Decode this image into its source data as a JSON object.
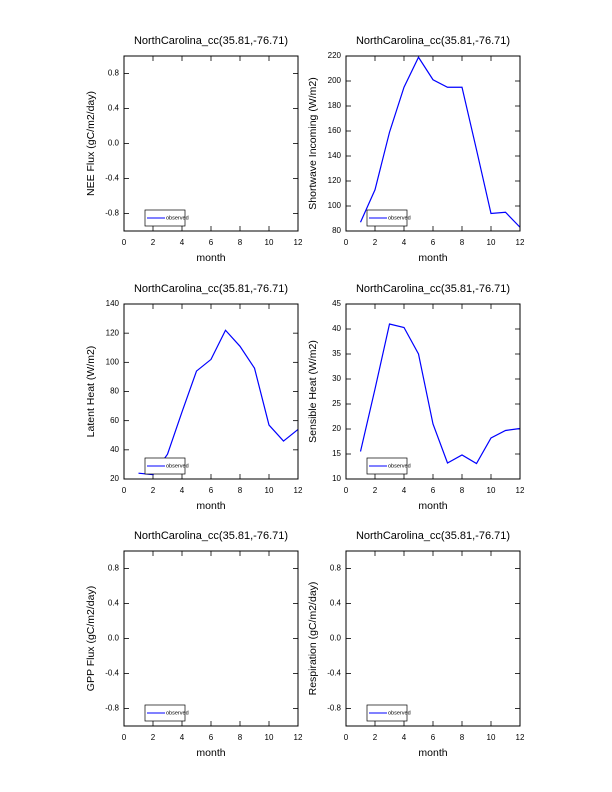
{
  "chart_data": [
    {
      "type": "line",
      "title": "NorthCarolina_cc(35.81,-76.71)",
      "xlabel": "month",
      "ylabel": "NEE Flux (gC/m2/day)",
      "x": [
        1,
        2,
        3,
        4,
        5,
        6,
        7,
        8,
        9,
        10,
        11,
        12
      ],
      "series": [
        {
          "name": "observed",
          "color": "#0000ff",
          "values": [
            null,
            null,
            null,
            null,
            null,
            null,
            null,
            null,
            null,
            null,
            null,
            null
          ]
        }
      ],
      "xlim": [
        0,
        12
      ],
      "xticks": [
        0,
        2,
        4,
        6,
        8,
        10,
        12
      ],
      "ylim": [
        -1,
        1
      ],
      "yticks": [
        -0.8,
        -0.4,
        {
          "value": 0,
          "label": "0.0"
        },
        0.4,
        0.8
      ],
      "grid": false,
      "legend": "lower left"
    },
    {
      "type": "line",
      "title": "NorthCarolina_cc(35.81,-76.71)",
      "xlabel": "month",
      "ylabel": "Shortwave Incoming (W/m2)",
      "x": [
        1,
        2,
        3,
        4,
        5,
        6,
        7,
        8,
        9,
        10,
        11,
        12
      ],
      "series": [
        {
          "name": "observed",
          "color": "#0000ff",
          "values": [
            87,
            113,
            159,
            195,
            219,
            201,
            195,
            195,
            145,
            94,
            95,
            83
          ]
        }
      ],
      "xlim": [
        0,
        12
      ],
      "xticks": [
        0,
        2,
        4,
        6,
        8,
        10,
        12
      ],
      "ylim": [
        80,
        220
      ],
      "yticks": [
        80,
        100,
        120,
        140,
        160,
        180,
        200,
        220
      ],
      "grid": false,
      "legend": "lower left"
    },
    {
      "type": "line",
      "title": "NorthCarolina_cc(35.81,-76.71)",
      "xlabel": "month",
      "ylabel": "Latent Heat (W/m2)",
      "x": [
        1,
        2,
        3,
        4,
        5,
        6,
        7,
        8,
        9,
        10,
        11,
        12
      ],
      "series": [
        {
          "name": "observed",
          "color": "#0000ff",
          "values": [
            24,
            23,
            37,
            66,
            94,
            102,
            122,
            111,
            96,
            57,
            46,
            54
          ]
        }
      ],
      "xlim": [
        0,
        12
      ],
      "xticks": [
        0,
        2,
        4,
        6,
        8,
        10,
        12
      ],
      "ylim": [
        20,
        140
      ],
      "yticks": [
        20,
        40,
        60,
        80,
        100,
        120,
        140
      ],
      "grid": false,
      "legend": "lower left"
    },
    {
      "type": "line",
      "title": "NorthCarolina_cc(35.81,-76.71)",
      "xlabel": "month",
      "ylabel": "Sensible Heat (W/m2)",
      "x": [
        1,
        2,
        3,
        4,
        5,
        6,
        7,
        8,
        9,
        10,
        11,
        12
      ],
      "series": [
        {
          "name": "observed",
          "color": "#0000ff",
          "values": [
            15.5,
            28,
            41,
            40.3,
            35,
            21,
            13.2,
            14.8,
            13.1,
            18.2,
            19.7,
            20.1
          ]
        }
      ],
      "xlim": [
        0,
        12
      ],
      "xticks": [
        0,
        2,
        4,
        6,
        8,
        10,
        12
      ],
      "ylim": [
        10,
        45
      ],
      "yticks": [
        10,
        15,
        20,
        25,
        30,
        35,
        40,
        45
      ],
      "grid": false,
      "legend": "lower left"
    },
    {
      "type": "line",
      "title": "NorthCarolina_cc(35.81,-76.71)",
      "xlabel": "month",
      "ylabel": "GPP Flux (gC/m2/day)",
      "x": [
        1,
        2,
        3,
        4,
        5,
        6,
        7,
        8,
        9,
        10,
        11,
        12
      ],
      "series": [
        {
          "name": "observed",
          "color": "#0000ff",
          "values": [
            null,
            null,
            null,
            null,
            null,
            null,
            null,
            null,
            null,
            null,
            null,
            null
          ]
        }
      ],
      "xlim": [
        0,
        12
      ],
      "xticks": [
        0,
        2,
        4,
        6,
        8,
        10,
        12
      ],
      "ylim": [
        -1,
        1
      ],
      "yticks": [
        -0.8,
        -0.4,
        {
          "value": 0,
          "label": "0.0"
        },
        0.4,
        0.8
      ],
      "grid": false,
      "legend": "lower left"
    },
    {
      "type": "line",
      "title": "NorthCarolina_cc(35.81,-76.71)",
      "xlabel": "month",
      "ylabel": "Respiration (gC/m2/day)",
      "x": [
        1,
        2,
        3,
        4,
        5,
        6,
        7,
        8,
        9,
        10,
        11,
        12
      ],
      "series": [
        {
          "name": "observed",
          "color": "#0000ff",
          "values": [
            null,
            null,
            null,
            null,
            null,
            null,
            null,
            null,
            null,
            null,
            null,
            null
          ]
        }
      ],
      "xlim": [
        0,
        12
      ],
      "xticks": [
        0,
        2,
        4,
        6,
        8,
        10,
        12
      ],
      "ylim": [
        -1,
        1
      ],
      "yticks": [
        -0.8,
        -0.4,
        {
          "value": 0,
          "label": "0.0"
        },
        0.4,
        0.8
      ],
      "grid": false,
      "legend": "lower left"
    }
  ]
}
